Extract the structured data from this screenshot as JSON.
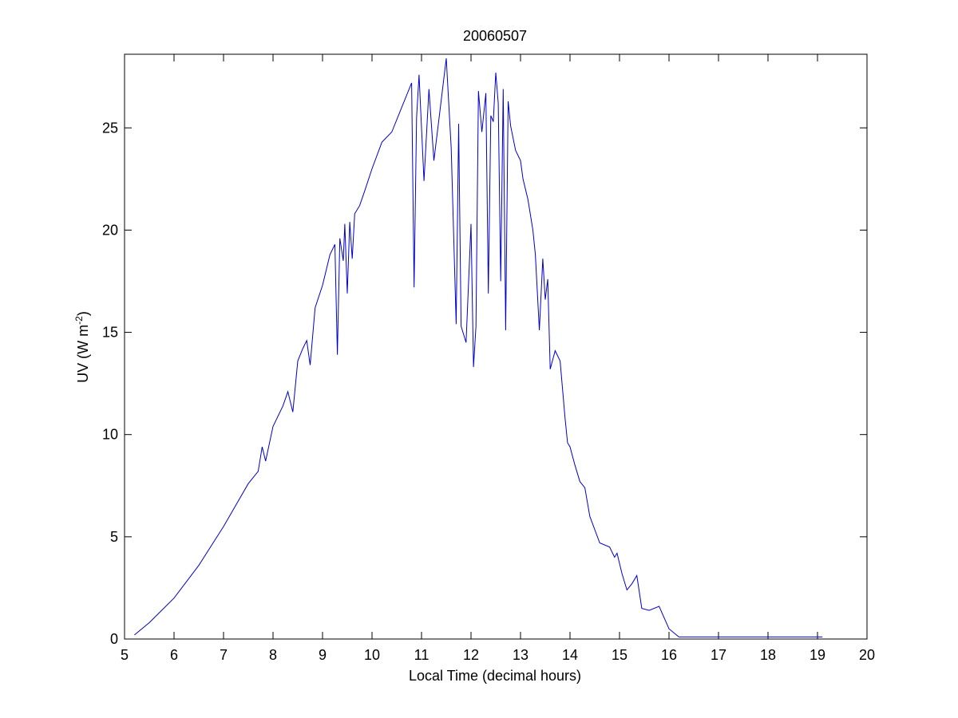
{
  "chart_data": {
    "type": "line",
    "title": "20060507",
    "xlabel": "Local Time (decimal hours)",
    "ylabel_main": "UV (W m",
    "ylabel_sup": "-2",
    "ylabel_tail": ")",
    "xlim": [
      5,
      20
    ],
    "ylim": [
      0,
      28.6
    ],
    "xticks": [
      "5",
      "6",
      "7",
      "8",
      "9",
      "10",
      "11",
      "12",
      "13",
      "14",
      "15",
      "16",
      "17",
      "18",
      "19",
      "20"
    ],
    "yticks": [
      "0",
      "5",
      "10",
      "15",
      "20",
      "25"
    ],
    "xtick_values": [
      5,
      6,
      7,
      8,
      9,
      10,
      11,
      12,
      13,
      14,
      15,
      16,
      17,
      18,
      19,
      20
    ],
    "ytick_values": [
      0,
      5,
      10,
      15,
      20,
      25
    ],
    "grid": false,
    "legend": "none",
    "line_color": "#0000cc",
    "series": [
      {
        "x": [
          5.2,
          5.5,
          6.0,
          6.5,
          7.0,
          7.5,
          7.7,
          7.78,
          7.85,
          8.0,
          8.2,
          8.3,
          8.4,
          8.5,
          8.6,
          8.68,
          8.75,
          8.85,
          9.0,
          9.15,
          9.25,
          9.3,
          9.35,
          9.42,
          9.45,
          9.5,
          9.55,
          9.6,
          9.65,
          9.75,
          9.85,
          10.0,
          10.2,
          10.4,
          10.6,
          10.8,
          10.85,
          10.9,
          10.95,
          11.05,
          11.15,
          11.25,
          11.38,
          11.5,
          11.6,
          11.7,
          11.75,
          11.8,
          11.9,
          12.0,
          12.05,
          12.1,
          12.15,
          12.22,
          12.3,
          12.35,
          12.4,
          12.45,
          12.5,
          12.55,
          12.6,
          12.65,
          12.7,
          12.75,
          12.8,
          12.9,
          13.0,
          13.05,
          13.15,
          13.25,
          13.3,
          13.38,
          13.45,
          13.5,
          13.55,
          13.6,
          13.7,
          13.8,
          13.85,
          13.9,
          13.95,
          14.0,
          14.1,
          14.2,
          14.3,
          14.4,
          14.6,
          14.8,
          14.9,
          14.95,
          15.05,
          15.15,
          15.25,
          15.35,
          15.45,
          15.6,
          15.8,
          16.0,
          16.2,
          16.4,
          16.6,
          16.8,
          17.0,
          17.2,
          17.4,
          17.6,
          17.8,
          18.0,
          18.2,
          18.4,
          18.5,
          18.7,
          18.9,
          19.1
        ],
        "y": [
          0.2,
          0.8,
          2.0,
          3.6,
          5.5,
          7.6,
          8.2,
          9.4,
          8.7,
          10.4,
          11.4,
          12.1,
          11.1,
          13.6,
          14.2,
          14.6,
          13.4,
          16.2,
          17.3,
          18.8,
          19.3,
          13.9,
          19.6,
          18.5,
          20.3,
          16.9,
          20.4,
          18.6,
          20.8,
          21.2,
          21.9,
          23.0,
          24.3,
          24.8,
          26.0,
          27.2,
          17.2,
          25.5,
          27.6,
          22.4,
          26.9,
          23.4,
          26.0,
          28.4,
          24.0,
          15.4,
          25.2,
          15.3,
          14.5,
          20.3,
          13.3,
          15.3,
          26.8,
          24.8,
          26.7,
          16.9,
          25.6,
          25.3,
          27.7,
          26.2,
          17.5,
          26.9,
          15.1,
          26.3,
          25.1,
          23.9,
          23.4,
          22.5,
          21.5,
          20.0,
          18.8,
          15.1,
          18.6,
          16.6,
          17.6,
          13.2,
          14.1,
          13.6,
          12.2,
          10.8,
          9.6,
          9.4,
          8.5,
          7.7,
          7.4,
          6.0,
          4.7,
          4.5,
          4.0,
          4.2,
          3.2,
          2.4,
          2.7,
          3.1,
          1.5,
          1.4,
          1.6,
          0.5,
          0.1,
          0.1,
          0.1,
          0.1,
          0.1,
          0.1,
          0.1,
          0.1,
          0.1,
          0.1,
          0.1,
          0.1,
          0.1,
          0.1,
          0.1,
          0.1
        ]
      }
    ]
  }
}
